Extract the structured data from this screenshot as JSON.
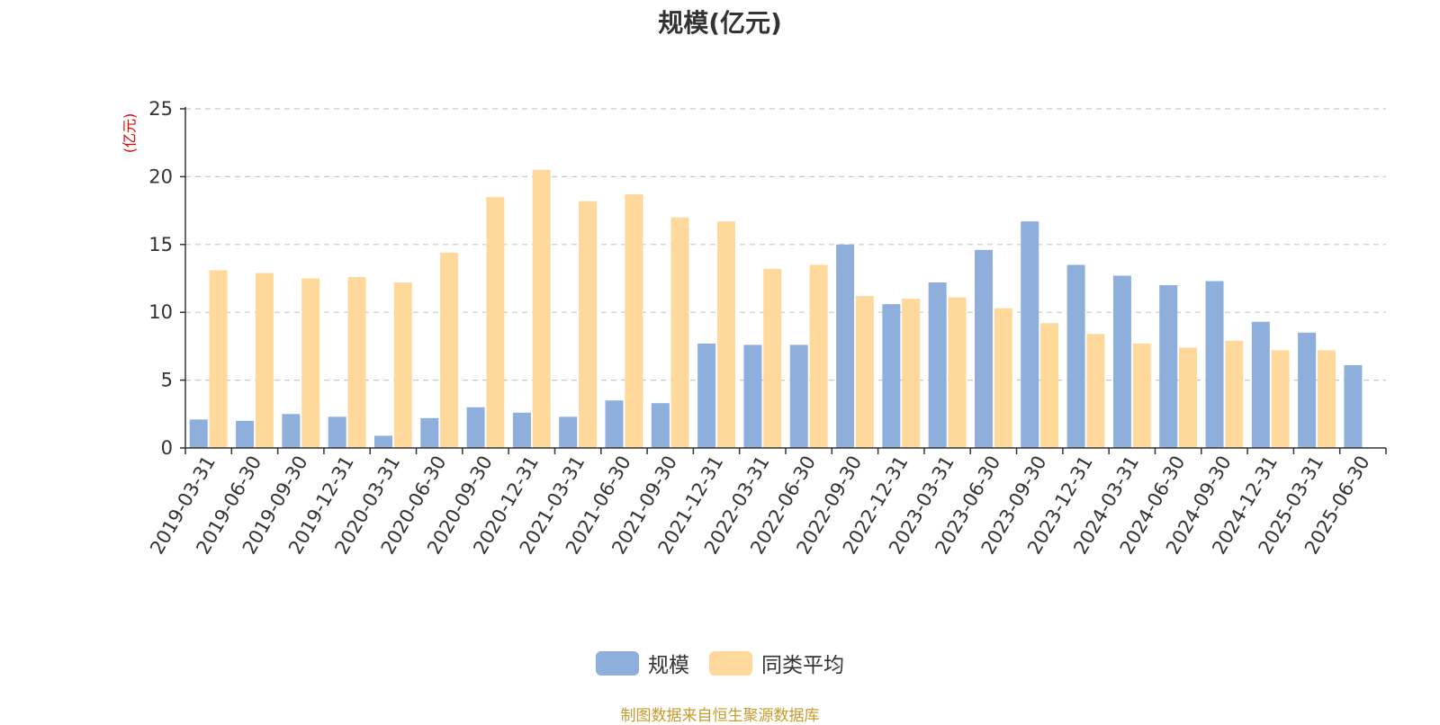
{
  "chart_data": {
    "type": "bar",
    "title": "规模(亿元)",
    "ylabel": "(亿元)",
    "xlabel": "",
    "ylim": [
      0,
      25
    ],
    "yticks": [
      0,
      5,
      10,
      15,
      20,
      25
    ],
    "grid": true,
    "legend_position": "bottom",
    "categories": [
      "2019-03-31",
      "2019-06-30",
      "2019-09-30",
      "2019-12-31",
      "2020-03-31",
      "2020-06-30",
      "2020-09-30",
      "2020-12-31",
      "2021-03-31",
      "2021-06-30",
      "2021-09-30",
      "2021-12-31",
      "2022-03-31",
      "2022-06-30",
      "2022-09-30",
      "2022-12-31",
      "2023-03-31",
      "2023-06-30",
      "2023-09-30",
      "2023-12-31",
      "2024-03-31",
      "2024-06-30",
      "2024-09-30",
      "2024-12-31",
      "2025-03-31",
      "2025-06-30"
    ],
    "series": [
      {
        "name": "规模",
        "color": "#8eaedb",
        "values": [
          2.1,
          2.0,
          2.5,
          2.3,
          0.9,
          2.2,
          3.0,
          2.6,
          2.3,
          3.5,
          3.3,
          7.7,
          7.6,
          7.6,
          15.0,
          10.6,
          12.2,
          14.6,
          16.7,
          13.5,
          12.7,
          12.0,
          12.3,
          9.3,
          8.5,
          6.1
        ]
      },
      {
        "name": "同类平均",
        "color": "#ffd99b",
        "values": [
          13.1,
          12.9,
          12.5,
          12.6,
          12.2,
          14.4,
          18.5,
          20.5,
          18.2,
          18.7,
          17.0,
          16.7,
          13.2,
          13.5,
          11.2,
          11.0,
          11.1,
          10.3,
          9.2,
          8.4,
          7.7,
          7.4,
          7.9,
          7.2,
          7.2,
          null
        ]
      }
    ]
  },
  "ui": {
    "y_unit_color": "#e60000",
    "source_note": "制图数据来自恒生聚源数据库"
  }
}
